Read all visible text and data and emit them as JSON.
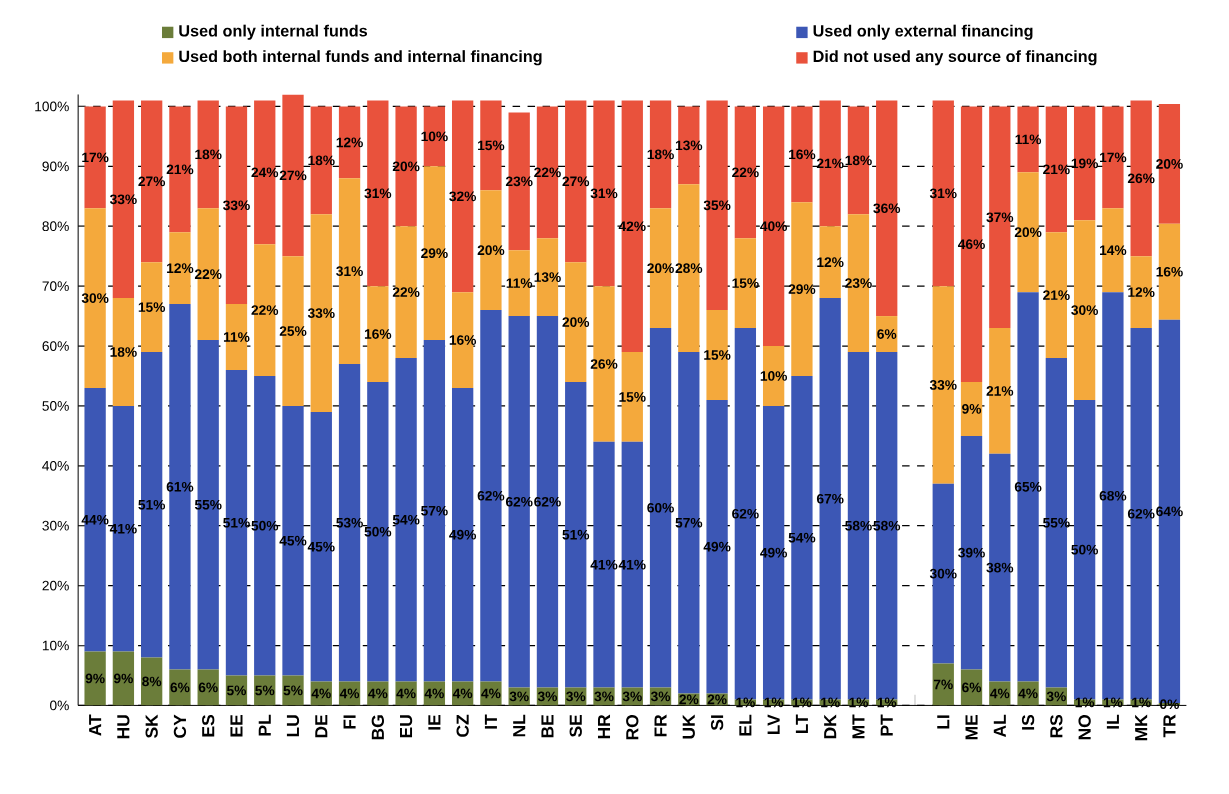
{
  "chart_data": {
    "type": "bar",
    "stacked": true,
    "legend": "top",
    "grid": "y",
    "categories": [
      "AT",
      "HU",
      "SK",
      "CY",
      "ES",
      "EE",
      "PL",
      "LU",
      "DE",
      "FI",
      "BG",
      "EU",
      "IE",
      "CZ",
      "IT",
      "NL",
      "BE",
      "SE",
      "HR",
      "RO",
      "FR",
      "UK",
      "SI",
      "EL",
      "LV",
      "LT",
      "DK",
      "MT",
      "PT",
      null,
      "LI",
      "ME",
      "AL",
      "IS",
      "RS",
      "NO",
      "IL",
      "MK",
      "TR"
    ],
    "ylim": [
      0,
      102
    ],
    "yticks": [
      {
        "value": 0,
        "label": "0%"
      },
      {
        "value": 10,
        "label": "10%"
      },
      {
        "value": 20,
        "label": "20%"
      },
      {
        "value": 30,
        "label": "30%"
      },
      {
        "value": 40,
        "label": "40%"
      },
      {
        "value": 50,
        "label": "50%"
      },
      {
        "value": 60,
        "label": "60%"
      },
      {
        "value": 70,
        "label": "70%"
      },
      {
        "value": 80,
        "label": "80%"
      },
      {
        "value": 90,
        "label": "90%"
      },
      {
        "value": 100,
        "label": "100%"
      }
    ],
    "series": [
      {
        "name": "Used only internal funds",
        "color": "#6b7d3a",
        "values": [
          9,
          9,
          8,
          6,
          6,
          5,
          5,
          5,
          4,
          4,
          4,
          4,
          4,
          4,
          4,
          3,
          3,
          3,
          3,
          3,
          3,
          2,
          2,
          1,
          1,
          1,
          1,
          1,
          1,
          null,
          7,
          6,
          4,
          4,
          3,
          1,
          1,
          1,
          0.4
        ],
        "value_labels": [
          "9%",
          "9%",
          "8%",
          "6%",
          "6%",
          "5%",
          "5%",
          "5%",
          "4%",
          "4%",
          "4%",
          "4%",
          "4%",
          "4%",
          "4%",
          "3%",
          "3%",
          "3%",
          "3%",
          "3%",
          "3%",
          "2%",
          "2%",
          "1%",
          "1%",
          "1%",
          "1%",
          "1%",
          "1%",
          null,
          "7%",
          "6%",
          "4%",
          "4%",
          "3%",
          "1%",
          "1%",
          "1%",
          "0%"
        ]
      },
      {
        "name": "Used only external financing",
        "color": "#3c57b5",
        "values": [
          44,
          41,
          51,
          61,
          55,
          51,
          50,
          45,
          45,
          53,
          50,
          54,
          57,
          49,
          62,
          62,
          62,
          51,
          41,
          41,
          60,
          57,
          49,
          62,
          49,
          54,
          67,
          58,
          58,
          null,
          30,
          39,
          38,
          65,
          55,
          50,
          68,
          62,
          64
        ],
        "value_labels": [
          "44%",
          "41%",
          "51%",
          "61%",
          "55%",
          "51%",
          "50%",
          "45%",
          "45%",
          "53%",
          "50%",
          "54%",
          "57%",
          "49%",
          "62%",
          "62%",
          "62%",
          "51%",
          "41%",
          "41%",
          "60%",
          "57%",
          "49%",
          "62%",
          "49%",
          "54%",
          "67%",
          "58%",
          "58%",
          null,
          "30%",
          "39%",
          "38%",
          "65%",
          "55%",
          "50%",
          "68%",
          "62%",
          "64%"
        ]
      },
      {
        "name": "Used both internal funds and internal financing",
        "color": "#f4a93c",
        "values": [
          30,
          18,
          15,
          12,
          22,
          11,
          22,
          25,
          33,
          31,
          16,
          22,
          29,
          16,
          20,
          11,
          13,
          20,
          26,
          15,
          20,
          28,
          15,
          15,
          10,
          29,
          12,
          23,
          6,
          null,
          33,
          9,
          21,
          20,
          21,
          30,
          14,
          12,
          16
        ],
        "value_labels": [
          "30%",
          "18%",
          "15%",
          "12%",
          "22%",
          "11%",
          "22%",
          "25%",
          "33%",
          "31%",
          "16%",
          "22%",
          "29%",
          "16%",
          "20%",
          "11%",
          "13%",
          "20%",
          "26%",
          "15%",
          "20%",
          "28%",
          "15%",
          "15%",
          "10%",
          "29%",
          "12%",
          "23%",
          "6%",
          null,
          "33%",
          "9%",
          "21%",
          "20%",
          "21%",
          "30%",
          "14%",
          "12%",
          "16%"
        ]
      },
      {
        "name": "Did not used any source of financing",
        "color": "#e9523c",
        "values": [
          17,
          33,
          27,
          21,
          18,
          33,
          24,
          27,
          18,
          12,
          31,
          20,
          10,
          32,
          15,
          23,
          22,
          27,
          31,
          42,
          18,
          13,
          35,
          22,
          40,
          16,
          21,
          18,
          36,
          null,
          31,
          46,
          37,
          11,
          21,
          19,
          17,
          26,
          20
        ],
        "value_labels": [
          "17%",
          "33%",
          "27%",
          "21%",
          "18%",
          "33%",
          "24%",
          "27%",
          "18%",
          "12%",
          "31%",
          "20%",
          "10%",
          "32%",
          "15%",
          "23%",
          "22%",
          "27%",
          "31%",
          "42%",
          "18%",
          "13%",
          "35%",
          "22%",
          "40%",
          "16%",
          "21%",
          "18%",
          "36%",
          null,
          "31%",
          "46%",
          "37%",
          "11%",
          "21%",
          "19%",
          "17%",
          "26%",
          "20%"
        ]
      }
    ]
  }
}
